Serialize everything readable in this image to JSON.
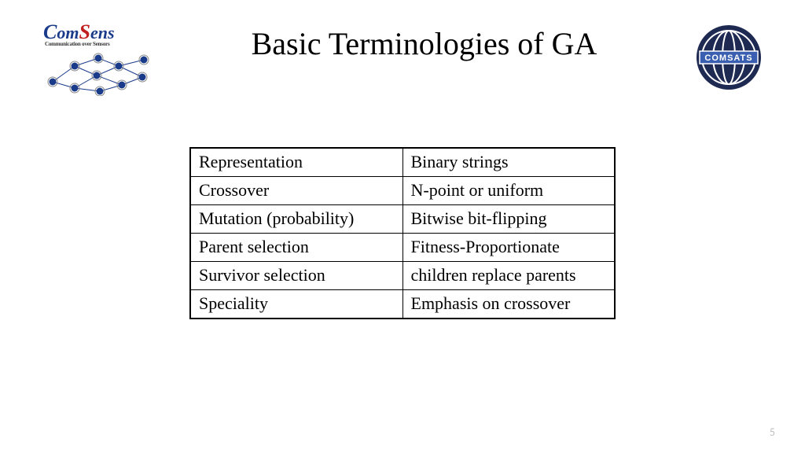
{
  "logo_left": {
    "brand_c": "C",
    "brand_om": "om",
    "brand_s": "S",
    "brand_ens": "ens",
    "tagline": "Communication over Sensors",
    "node_color": "#1a3a8a",
    "node_ring": "#888888",
    "edge_color": "#1a3a8a"
  },
  "title": "Basic Terminologies of GA",
  "logo_right": {
    "circle_fill": "#1e2a52",
    "band_fill": "#3a5fb0",
    "label": "COMSATS",
    "label_color": "#ffffff"
  },
  "table": {
    "border_color": "#000000",
    "cell_fontsize": 22,
    "col1_width": 270,
    "col2_width": 270,
    "rows": [
      {
        "term": "Representation",
        "value": "Binary strings"
      },
      {
        "term": "Crossover",
        "value": "N-point or uniform"
      },
      {
        "term": "Mutation (probability)",
        "value": "Bitwise bit-flipping"
      },
      {
        "term": "Parent selection",
        "value": "Fitness-Proportionate"
      },
      {
        "term": "Survivor selection",
        "value": "children replace parents"
      },
      {
        "term": "Speciality",
        "value": "Emphasis on crossover"
      }
    ]
  },
  "page_number": "5"
}
